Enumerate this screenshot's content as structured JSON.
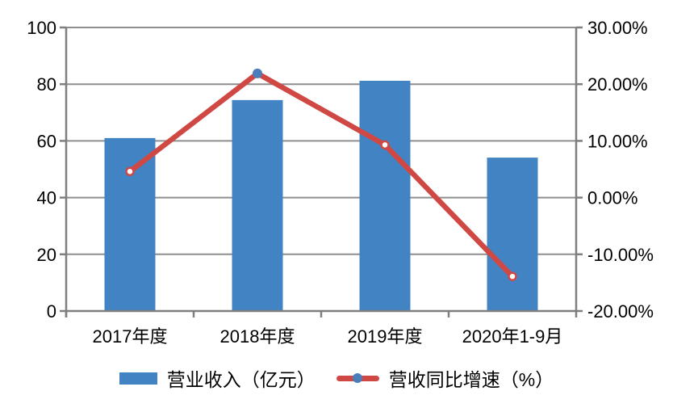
{
  "chart_data": {
    "type": "combo",
    "title": "",
    "categories": [
      "2017年度",
      "2018年度",
      "2019年度",
      "2020年1-9月"
    ],
    "series": [
      {
        "name": "营业收入（亿元）",
        "type": "bar",
        "axis": "left",
        "values": [
          61,
          74.4,
          81.2,
          54.1
        ]
      },
      {
        "name": "营收同比增速（%）",
        "type": "line",
        "axis": "right",
        "values": [
          4.6,
          21.9,
          9.3,
          -13.9
        ],
        "marker_styles": [
          "open",
          "filled",
          "open",
          "open"
        ]
      }
    ],
    "left_axis": {
      "min": 0,
      "max": 100,
      "tick_values": [
        0,
        20,
        40,
        60,
        80,
        100
      ],
      "tick_labels": [
        "0",
        "20",
        "40",
        "60",
        "80",
        "100"
      ]
    },
    "right_axis": {
      "min": -20,
      "max": 30,
      "tick_values": [
        -20,
        -10,
        0,
        10,
        20,
        30
      ],
      "tick_labels": [
        "-20.00%",
        "-10.00%",
        "0.00%",
        "10.00%",
        "20.00%",
        "30.00%"
      ]
    },
    "grid": true,
    "legend_position": "bottom",
    "colors": {
      "bar": "#4283C4",
      "line": "#D04843",
      "marker_filled": "#4A7EBB",
      "marker_open_fill": "#FFFFFF",
      "grid": "#8E8E8E",
      "axis": "#7F7F7F",
      "text": "#000000",
      "background": "#FFFFFF"
    }
  }
}
